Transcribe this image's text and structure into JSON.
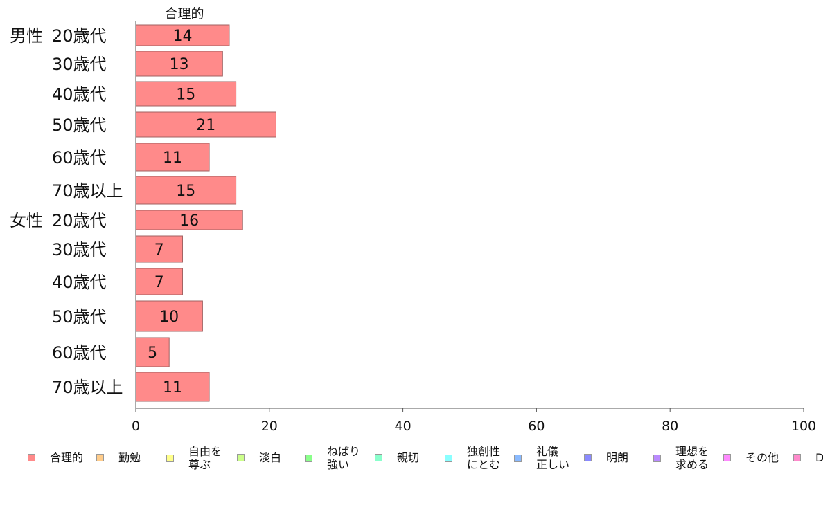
{
  "chart_data": {
    "type": "bar",
    "orientation": "horizontal",
    "title": "合理的",
    "groups": [
      {
        "label": "男性",
        "categories": [
          "20歳代",
          "30歳代",
          "40歳代",
          "50歳代",
          "60歳代",
          "70歳以上"
        ]
      },
      {
        "label": "女性",
        "categories": [
          "20歳代",
          "30歳代",
          "40歳代",
          "50歳代",
          "60歳代",
          "70歳以上"
        ]
      }
    ],
    "series": [
      {
        "name": "合理的",
        "color": "#ff8a8a",
        "values": [
          14,
          13,
          15,
          21,
          11,
          15,
          16,
          7,
          7,
          10,
          5,
          11
        ]
      }
    ],
    "xlim": [
      0,
      100
    ],
    "xticks": [
      "0",
      "20",
      "40",
      "60",
      "80",
      "100"
    ],
    "xlabel": "",
    "ylabel": "",
    "grid": false,
    "legend_position": "bottom",
    "legend": [
      {
        "label": "合理的",
        "color": "#ff8a8a"
      },
      {
        "label": "勤勉",
        "color": "#ffcc8a"
      },
      {
        "label": "自由を\n尊ぶ",
        "color": "#ffff8a"
      },
      {
        "label": "淡白",
        "color": "#ccff8a"
      },
      {
        "label": "ねばり\n強い",
        "color": "#8aff8a"
      },
      {
        "label": "親切",
        "color": "#8affcc"
      },
      {
        "label": "独創性\nにとむ",
        "color": "#8affff"
      },
      {
        "label": "礼儀\n正しい",
        "color": "#8abaff"
      },
      {
        "label": "明朗",
        "color": "#8a8aff"
      },
      {
        "label": "理想を\n求める",
        "color": "#ba8aff"
      },
      {
        "label": "その他",
        "color": "#ff8aff"
      },
      {
        "label": "D",
        "color": "#ff8acc"
      }
    ]
  }
}
